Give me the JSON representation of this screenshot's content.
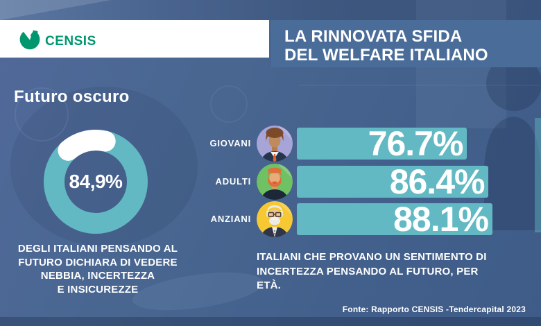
{
  "brand": {
    "logo_text": "CENSIS",
    "logo_color": "#00976e"
  },
  "header": {
    "title_line1": "LA RINNOVATA SFIDA",
    "title_line2": "DEL WELFARE ITALIANO"
  },
  "section": {
    "title": "Futuro oscuro"
  },
  "colors": {
    "accent_teal": "#62b9c3",
    "title_box_blue": "#4a6c99",
    "background_blue": "#486690",
    "censis_green": "#00976e",
    "avatar_bg_giovani": "#a7a4d8",
    "avatar_bg_adulti": "#6fc163",
    "avatar_bg_anziani": "#f6c933"
  },
  "chart_data": [
    {
      "type": "pie",
      "subtype": "donut",
      "value_pct": 84.9,
      "remainder_pct": 15.1,
      "value_label": "84,9%",
      "ring_color": "#62b9c3",
      "gap_color": "#ffffff",
      "caption_lines": [
        "DEGLI ITALIANI PENSANDO AL",
        "FUTURO DICHIARA DI VEDERE",
        "NEBBIA, INCERTEZZA",
        "E INSICUREZZE"
      ]
    },
    {
      "type": "bar",
      "orientation": "horizontal",
      "categories": [
        "GIOVANI",
        "ADULTI",
        "ANZIANI"
      ],
      "values": [
        76.7,
        86.4,
        88.1
      ],
      "value_labels": [
        "76.7%",
        "86.4%",
        "88.1%"
      ],
      "bar_color": "#62b9c3",
      "xlim": [
        0,
        100
      ],
      "icons": [
        "young-person-avatar",
        "adult-person-avatar",
        "elderly-person-avatar"
      ],
      "caption_lines": [
        "ITALIANI CHE PROVANO UN SENTIMENTO DI",
        "INCERTEZZA PENSANDO AL FUTURO, PER ETÀ."
      ]
    }
  ],
  "footer": {
    "source": "Fonte: Rapporto CENSIS -Tendercapital 2023"
  }
}
